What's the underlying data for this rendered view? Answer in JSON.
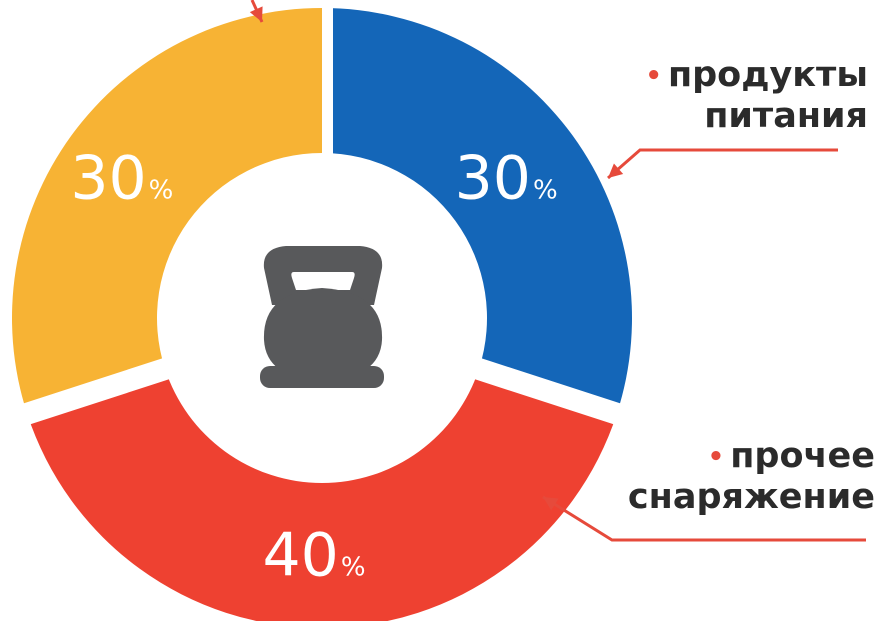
{
  "chart_data": {
    "type": "pie",
    "style": "donut",
    "center_icon": "kettlebell-icon",
    "slices": [
      {
        "label": "продукты питания",
        "value": 30,
        "value_text": "30",
        "unit": "%",
        "color": "#1466b8"
      },
      {
        "label": "прочее снаряжение",
        "value": 40,
        "value_text": "40",
        "unit": "%",
        "color": "#ee4131"
      },
      {
        "label": "",
        "value": 30,
        "value_text": "30",
        "unit": "%",
        "color": "#f7b334"
      }
    ]
  },
  "callouts": {
    "food": {
      "line1": "продукты",
      "line2": "питания"
    },
    "gear": {
      "line1": "прочее",
      "line2": "снаряжение"
    },
    "bullet": "•"
  },
  "colors": {
    "pointer": "#e64a3b",
    "icon": "#58595b",
    "label_text": "#ffffff"
  }
}
